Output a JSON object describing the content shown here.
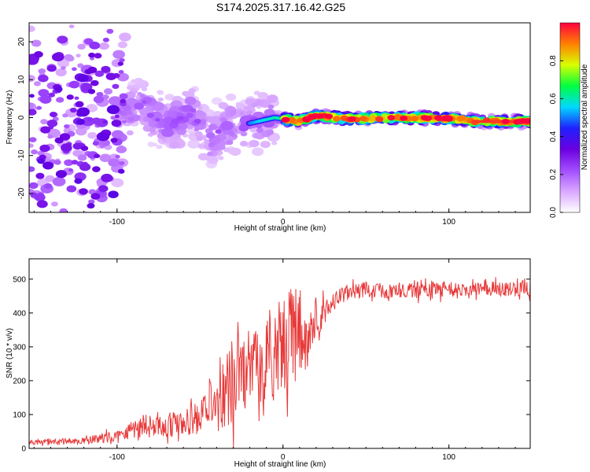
{
  "title": "S174.2025.317.16.42.G25",
  "colors": {
    "snr_line": "#e83a3a",
    "axis": "#000000",
    "colormap": [
      "#ffffff",
      "#d9a8ff",
      "#a24dff",
      "#6a00e0",
      "#2020ff",
      "#00d8ff",
      "#00ff40",
      "#d8ff00",
      "#ff8000",
      "#ff0040"
    ]
  },
  "chart_data": [
    {
      "type": "heatmap",
      "xlabel": "Height of straight line (km)",
      "ylabel": "Frequency (Hz)",
      "xlim": [
        -153,
        149
      ],
      "ylim": [
        -25,
        25
      ],
      "x_ticks": [
        -100,
        0,
        100
      ],
      "x_tick_labels": [
        "-100",
        "0",
        "100"
      ],
      "y_ticks": [
        -20,
        -10,
        0,
        10,
        20
      ],
      "y_tick_labels": [
        "-20",
        "-10",
        "0",
        "10",
        "20"
      ],
      "colorbar": {
        "label": "Normalized spectral amplitude",
        "range": [
          0.0,
          1.0
        ],
        "ticks": [
          0.0,
          0.2,
          0.4,
          0.6,
          0.8
        ],
        "tick_labels": [
          "0.0",
          "0.2",
          "0.4",
          "0.6",
          "0.8"
        ]
      },
      "ridge": [
        {
          "x": -153,
          "freq": -2,
          "amp": 0.2
        },
        {
          "x": -120,
          "freq": -4,
          "amp": 0.3
        },
        {
          "x": -100,
          "freq": -1,
          "amp": 0.35
        },
        {
          "x": -85,
          "freq": 4,
          "amp": 0.4
        },
        {
          "x": -70,
          "freq": -3,
          "amp": 0.35
        },
        {
          "x": -55,
          "freq": 2,
          "amp": 0.4
        },
        {
          "x": -45,
          "freq": -6,
          "amp": 0.35
        },
        {
          "x": -35,
          "freq": -3,
          "amp": 0.35
        },
        {
          "x": -25,
          "freq": -2,
          "amp": 0.45
        },
        {
          "x": -15,
          "freq": -1,
          "amp": 0.55
        },
        {
          "x": -5,
          "freq": 0,
          "amp": 0.6
        },
        {
          "x": 10,
          "freq": -1,
          "amp": 0.65
        },
        {
          "x": 20,
          "freq": 0.5,
          "amp": 0.7
        },
        {
          "x": 40,
          "freq": -0.3,
          "amp": 0.7
        },
        {
          "x": 80,
          "freq": 0,
          "amp": 0.75
        },
        {
          "x": 112,
          "freq": -0.5,
          "amp": 0.8
        },
        {
          "x": 115,
          "freq": -1,
          "amp": 0.95
        },
        {
          "x": 149,
          "freq": -1,
          "amp": 0.95
        }
      ]
    },
    {
      "type": "line",
      "xlabel": "Height of straight line (km)",
      "ylabel": "SNR (10 * v/v)",
      "xlim": [
        -153,
        149
      ],
      "ylim": [
        0,
        560
      ],
      "x_ticks": [
        -100,
        0,
        100
      ],
      "x_tick_labels": [
        "-100",
        "0",
        "100"
      ],
      "y_ticks": [
        0,
        100,
        200,
        300,
        400,
        500
      ],
      "y_tick_labels": [
        "0",
        "100",
        "200",
        "300",
        "400",
        "500"
      ],
      "series": [
        {
          "name": "SNR",
          "x": [
            -153,
            -120,
            -100,
            -90,
            -80,
            -70,
            -60,
            -50,
            -45,
            -40,
            -35,
            -30,
            -25,
            -20,
            -15,
            -10,
            -5,
            0,
            5,
            10,
            15,
            20,
            25,
            30,
            40,
            50,
            60,
            70,
            80,
            90,
            100,
            110,
            120,
            130,
            149
          ],
          "mean": [
            18,
            22,
            38,
            60,
            72,
            68,
            72,
            90,
            115,
            145,
            175,
            200,
            220,
            232,
            245,
            262,
            280,
            305,
            325,
            340,
            355,
            378,
            405,
            435,
            462,
            470,
            468,
            465,
            474,
            466,
            470,
            462,
            478,
            470,
            472
          ],
          "spread": [
            8,
            10,
            18,
            30,
            40,
            38,
            40,
            55,
            70,
            95,
            120,
            130,
            120,
            100,
            110,
            130,
            140,
            150,
            150,
            130,
            90,
            60,
            40,
            30,
            25,
            22,
            25,
            25,
            28,
            25,
            25,
            22,
            25,
            22,
            25
          ]
        }
      ]
    }
  ]
}
